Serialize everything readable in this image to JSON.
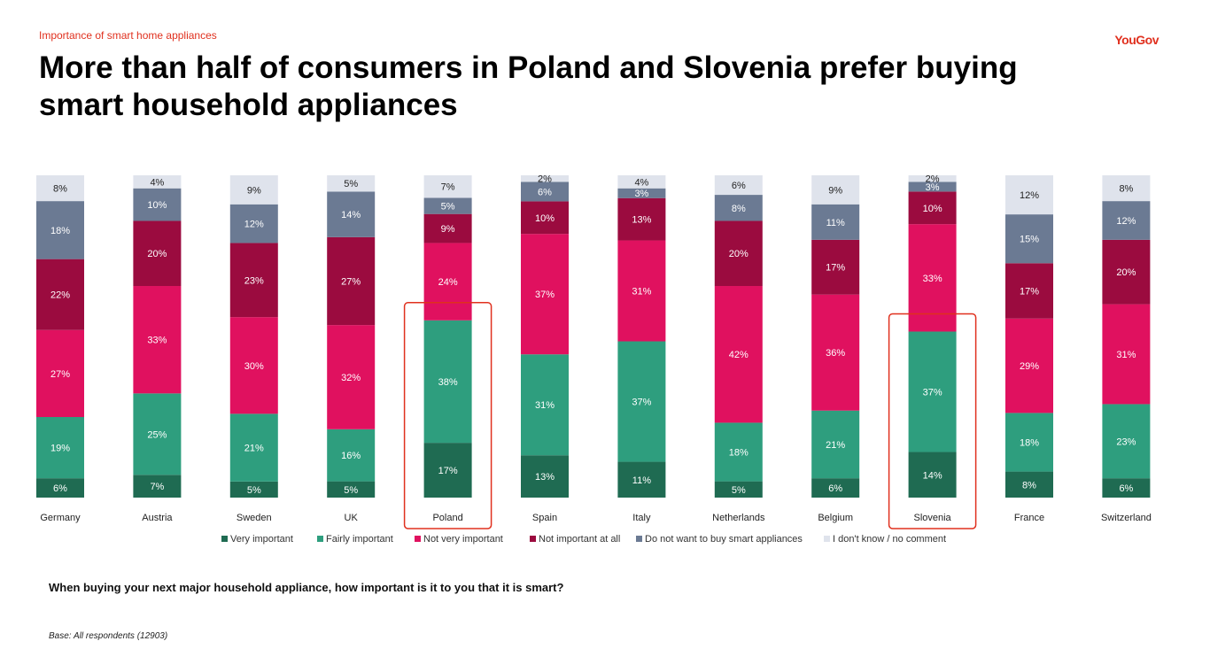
{
  "header": {
    "kicker": "Importance of smart home appliances",
    "logo": "YouGov",
    "title": "More than half of consumers in Poland and Slovenia prefer buying smart household appliances"
  },
  "footer": {
    "question": "When buying your next major household appliance, how important is it to you that it is smart?",
    "base": "Base: All respondents (12903)"
  },
  "chart_data": {
    "type": "bar",
    "stacked": true,
    "orientation": "vertical",
    "title": "",
    "xlabel": "",
    "ylabel": "",
    "legend_position": "bottom",
    "grid": false,
    "categories": [
      "Germany",
      "Austria",
      "Sweden",
      "UK",
      "Poland",
      "Spain",
      "Italy",
      "Netherlands",
      "Belgium",
      "Slovenia",
      "France",
      "Switzerland"
    ],
    "highlighted": [
      "Poland",
      "Slovenia"
    ],
    "highlight_color": "#e0301e",
    "series": [
      {
        "name": "Very important",
        "color": "#1f6b52",
        "values": [
          6,
          7,
          5,
          5,
          17,
          13,
          11,
          5,
          6,
          14,
          8,
          6
        ]
      },
      {
        "name": "Fairly important",
        "color": "#2e9e7e",
        "values": [
          19,
          25,
          21,
          16,
          38,
          31,
          37,
          18,
          21,
          37,
          18,
          23
        ]
      },
      {
        "name": "Not very important",
        "color": "#e0115f",
        "values": [
          27,
          33,
          30,
          32,
          24,
          37,
          31,
          42,
          36,
          33,
          29,
          31
        ]
      },
      {
        "name": "Not important at all",
        "color": "#9b0b3f",
        "values": [
          22,
          20,
          23,
          27,
          9,
          10,
          13,
          20,
          17,
          10,
          17,
          20
        ]
      },
      {
        "name": "Do not want to buy smart appliances",
        "color": "#6b7a93",
        "values": [
          18,
          10,
          12,
          14,
          5,
          6,
          3,
          8,
          11,
          3,
          15,
          12
        ]
      },
      {
        "name": "I don't know / no comment",
        "color": "#dfe3ec",
        "values": [
          8,
          4,
          9,
          5,
          7,
          2,
          4,
          6,
          9,
          2,
          12,
          8
        ]
      }
    ]
  }
}
